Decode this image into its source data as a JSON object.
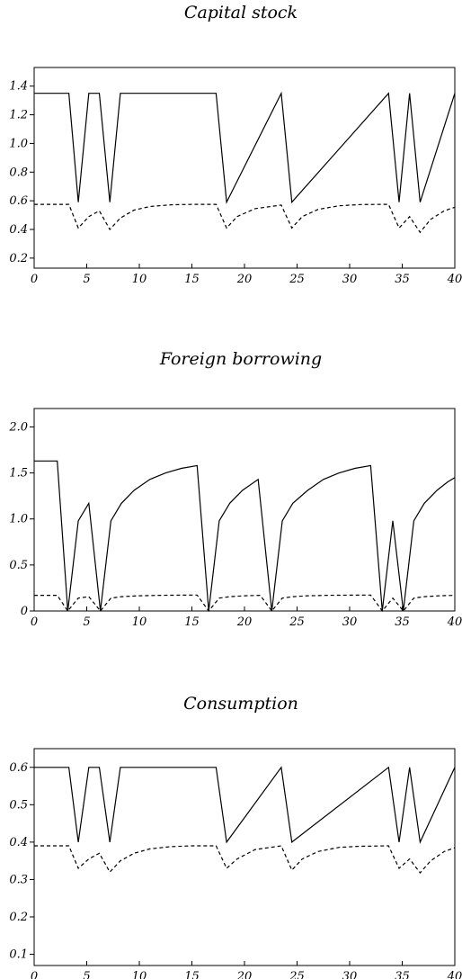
{
  "chart_data": [
    {
      "type": "line",
      "title": "Capital stock",
      "xlim": [
        0,
        40
      ],
      "ylim": [
        0.13,
        1.53
      ],
      "xticks": [
        "0",
        "5",
        "10",
        "15",
        "20",
        "25",
        "30",
        "35",
        "40"
      ],
      "yticks": [
        "0.2",
        "0.4",
        "0.6",
        "0.8",
        "1.0",
        "1.2",
        "1.4"
      ],
      "ytick_values": [
        0.2,
        0.4,
        0.6,
        0.8,
        1.0,
        1.2,
        1.4
      ],
      "series": [
        {
          "style": "solid",
          "x": [
            0,
            3.3,
            4.2,
            5.2,
            6.2,
            7.2,
            8.2,
            17.3,
            18.3,
            23.5,
            24.5,
            33.7,
            34.7,
            35.7,
            36.7,
            40
          ],
          "y": [
            1.35,
            1.35,
            0.59,
            1.35,
            1.35,
            0.59,
            1.35,
            1.35,
            0.59,
            1.35,
            0.59,
            1.35,
            0.59,
            1.35,
            0.59,
            1.35
          ]
        },
        {
          "style": "dashed",
          "x": [
            0,
            3.3,
            4.2,
            5.2,
            6.2,
            7.2,
            8.2,
            9.5,
            11,
            13,
            15,
            17.3,
            18.3,
            19.3,
            21,
            23.5,
            24.5,
            25.5,
            27,
            29,
            31,
            33.7,
            34.7,
            35.7,
            36.7,
            37.7,
            39,
            40
          ],
          "y": [
            0.575,
            0.575,
            0.41,
            0.49,
            0.53,
            0.4,
            0.48,
            0.535,
            0.56,
            0.572,
            0.575,
            0.575,
            0.41,
            0.49,
            0.545,
            0.57,
            0.41,
            0.49,
            0.54,
            0.565,
            0.574,
            0.575,
            0.41,
            0.49,
            0.38,
            0.47,
            0.53,
            0.555
          ]
        }
      ]
    },
    {
      "type": "line",
      "title": "Foreign borrowing",
      "xlim": [
        0,
        40
      ],
      "ylim": [
        0,
        2.2
      ],
      "xticks": [
        "0",
        "5",
        "10",
        "15",
        "20",
        "25",
        "30",
        "35",
        "40"
      ],
      "yticks": [
        "0",
        "0.5",
        "1.0",
        "1.5",
        "2.0"
      ],
      "ytick_values": [
        0,
        0.5,
        1.0,
        1.5,
        2.0
      ],
      "series": [
        {
          "style": "solid",
          "x": [
            0,
            2.2,
            3.2,
            4.2,
            5.2,
            6.3,
            7.3,
            8.3,
            9.5,
            11,
            12.5,
            14,
            15.5,
            16.6,
            17.6,
            18.6,
            19.8,
            21.3,
            22.6,
            23.6,
            24.6,
            26,
            27.5,
            29,
            30.5,
            32,
            33.1,
            34.1,
            35.1,
            36.1,
            37.1,
            38.3,
            39.3,
            40
          ],
          "y": [
            1.63,
            1.63,
            0.0,
            0.98,
            1.17,
            0.0,
            0.98,
            1.17,
            1.31,
            1.43,
            1.5,
            1.55,
            1.58,
            0.0,
            0.98,
            1.17,
            1.31,
            1.43,
            0.0,
            0.98,
            1.17,
            1.31,
            1.43,
            1.5,
            1.55,
            1.58,
            0.0,
            0.98,
            0.0,
            0.98,
            1.17,
            1.31,
            1.4,
            1.45
          ]
        },
        {
          "style": "dashed",
          "x": [
            0,
            2.2,
            3.2,
            4.2,
            5.2,
            6.3,
            7.3,
            8.3,
            10,
            12,
            14,
            15.5,
            16.6,
            17.6,
            18.6,
            20,
            21.5,
            22.6,
            23.6,
            24.6,
            26,
            28,
            30,
            32,
            33.1,
            34.1,
            35.1,
            36.1,
            37.1,
            38.5,
            40
          ],
          "y": [
            0.17,
            0.17,
            0.0,
            0.14,
            0.155,
            0.0,
            0.14,
            0.155,
            0.165,
            0.17,
            0.172,
            0.173,
            0.0,
            0.14,
            0.155,
            0.165,
            0.17,
            0.0,
            0.14,
            0.155,
            0.165,
            0.17,
            0.172,
            0.173,
            0.0,
            0.14,
            0.0,
            0.14,
            0.155,
            0.165,
            0.17
          ]
        }
      ]
    },
    {
      "type": "line",
      "title": "Consumption",
      "xlim": [
        0,
        40
      ],
      "ylim": [
        0.07,
        0.65
      ],
      "xticks": [
        "0",
        "5",
        "10",
        "15",
        "20",
        "25",
        "30",
        "35",
        "40"
      ],
      "yticks": [
        "0.1",
        "0.2",
        "0.3",
        "0.4",
        "0.5",
        "0.6"
      ],
      "ytick_values": [
        0.1,
        0.2,
        0.3,
        0.4,
        0.5,
        0.6
      ],
      "series": [
        {
          "style": "solid",
          "x": [
            0,
            3.3,
            4.2,
            5.2,
            6.2,
            7.2,
            8.2,
            17.3,
            18.3,
            23.5,
            24.5,
            33.7,
            34.7,
            35.7,
            36.7,
            40
          ],
          "y": [
            0.6,
            0.6,
            0.4,
            0.6,
            0.6,
            0.4,
            0.6,
            0.6,
            0.4,
            0.6,
            0.4,
            0.6,
            0.4,
            0.6,
            0.4,
            0.6
          ]
        },
        {
          "style": "dashed",
          "x": [
            0,
            3.3,
            4.2,
            5.2,
            6.2,
            7.2,
            8.2,
            9.5,
            11,
            13,
            15,
            17.3,
            18.3,
            19.3,
            21,
            23.5,
            24.5,
            25.5,
            27,
            29,
            31,
            33.7,
            34.7,
            35.7,
            36.7,
            37.7,
            39,
            40
          ],
          "y": [
            0.39,
            0.39,
            0.33,
            0.355,
            0.37,
            0.32,
            0.35,
            0.37,
            0.382,
            0.388,
            0.39,
            0.39,
            0.33,
            0.355,
            0.38,
            0.39,
            0.325,
            0.355,
            0.375,
            0.386,
            0.389,
            0.39,
            0.33,
            0.355,
            0.318,
            0.35,
            0.375,
            0.385
          ]
        }
      ]
    }
  ]
}
